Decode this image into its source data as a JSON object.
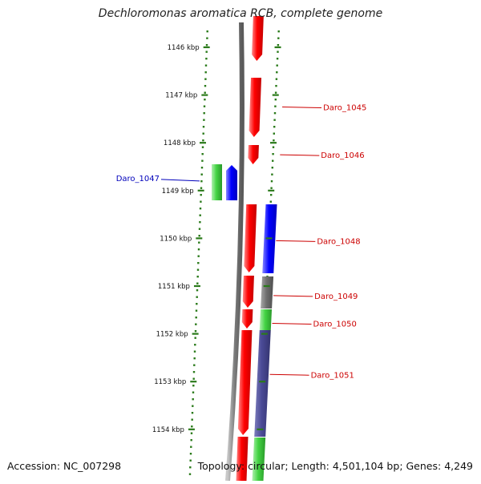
{
  "title": "Dechloromonas aromatica RCB, complete genome",
  "accession": {
    "label": "Accession:",
    "value": "NC_007298"
  },
  "topology": {
    "label": "Topology:",
    "value": "circular"
  },
  "length": {
    "label": "Length:",
    "value": "4,501,104 bp"
  },
  "genes": {
    "label": "Genes:",
    "value": "4,249"
  },
  "colors": {
    "ruler": "#2a7a1a",
    "backbone": "#808080",
    "red": "#ee1111",
    "blue": "#1111ee",
    "green": "#44cc44",
    "gray": "#707070",
    "navy": "#4a4a96",
    "label_red": "#cc0000",
    "label_blue": "#0000bb"
  },
  "axis": {
    "unit": "kbp",
    "ticks": [
      {
        "label": "1146 kbp",
        "kbp": 1146
      },
      {
        "label": "1147 kbp",
        "kbp": 1147
      },
      {
        "label": "1148 kbp",
        "kbp": 1148
      },
      {
        "label": "1149 kbp",
        "kbp": 1149
      },
      {
        "label": "1150 kbp",
        "kbp": 1150
      },
      {
        "label": "1151 kbp",
        "kbp": 1151
      },
      {
        "label": "1152 kbp",
        "kbp": 1152
      },
      {
        "label": "1153 kbp",
        "kbp": 1153
      },
      {
        "label": "1154 kbp",
        "kbp": 1154
      }
    ]
  },
  "gene_labels": [
    {
      "name": "Daro_1045",
      "kbp": 1147.25,
      "color": "red"
    },
    {
      "name": "Daro_1046",
      "kbp": 1148.25,
      "color": "red"
    },
    {
      "name": "Daro_1047",
      "kbp": 1148.8,
      "color": "blue"
    },
    {
      "name": "Daro_1048",
      "kbp": 1150.05,
      "color": "red"
    },
    {
      "name": "Daro_1049",
      "kbp": 1151.2,
      "color": "red"
    },
    {
      "name": "Daro_1050",
      "kbp": 1151.78,
      "color": "red"
    },
    {
      "name": "Daro_1051",
      "kbp": 1152.85,
      "color": "red"
    }
  ]
}
